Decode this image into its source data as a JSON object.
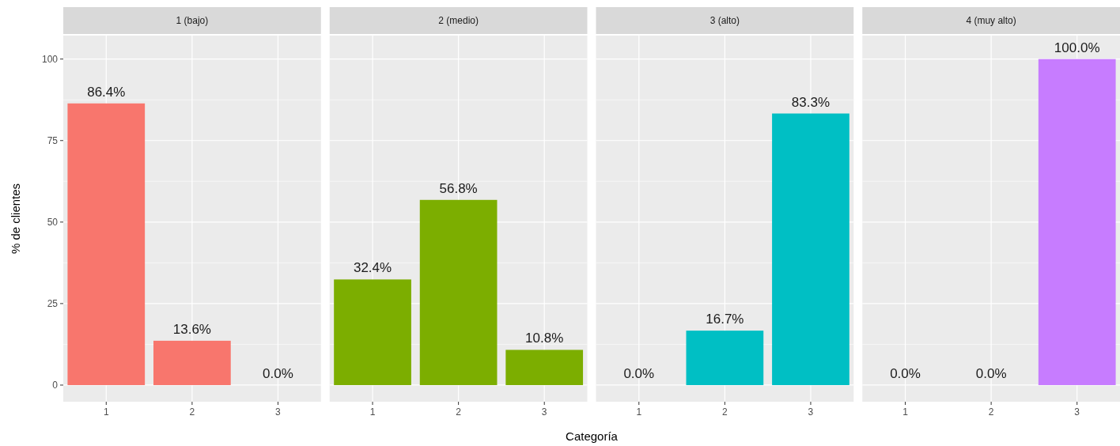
{
  "chart_data": [
    {
      "type": "bar",
      "title": "1 (bajo)",
      "ylabel": "% de clientes",
      "categories": [
        "1",
        "2",
        "3"
      ],
      "values": [
        86.4,
        13.6,
        0.0
      ],
      "color": "#f8766d",
      "value_labels": [
        "86.4%",
        "13.6%",
        "0.0%"
      ],
      "ylim": [
        -5.1,
        107.2
      ],
      "yticks": [
        0,
        25,
        50,
        75,
        100
      ],
      "grid": true
    },
    {
      "type": "bar",
      "title": "2 (medio)",
      "xlabel": "Categoría",
      "categories": [
        "1",
        "2",
        "3"
      ],
      "values": [
        32.4,
        56.8,
        10.8
      ],
      "color": "#7cae00",
      "value_labels": [
        "32.4%",
        "56.8%",
        "10.8%"
      ],
      "ylim": [
        -5.1,
        107.2
      ],
      "yticks": [
        0,
        25,
        50,
        75,
        100
      ],
      "grid": true,
      "tick_labels": "x"
    },
    {
      "type": "bar",
      "title": "3 (alto)",
      "categories": [
        "1",
        "2",
        "3"
      ],
      "values": [
        0.0,
        16.7,
        83.3
      ],
      "color": "#00bfc4",
      "value_labels": [
        "0.0%",
        "16.7%",
        "83.3%"
      ],
      "ylim": [
        -5.1,
        107.2
      ],
      "yticks": [
        0,
        25,
        50,
        75,
        100
      ],
      "grid": true,
      "tick_labels": "x"
    },
    {
      "type": "bar",
      "title": "4 (muy alto)",
      "categories": [
        "1",
        "2",
        "3"
      ],
      "values": [
        0.0,
        0.0,
        100.0
      ],
      "color": "#c77cff",
      "value_labels": [
        "0.0%",
        "0.0%",
        "100.0%"
      ],
      "ylim": [
        -5.1,
        107.2
      ],
      "yticks": [
        0,
        25,
        50,
        75,
        100
      ],
      "grid": true,
      "tick_labels": "x"
    }
  ]
}
